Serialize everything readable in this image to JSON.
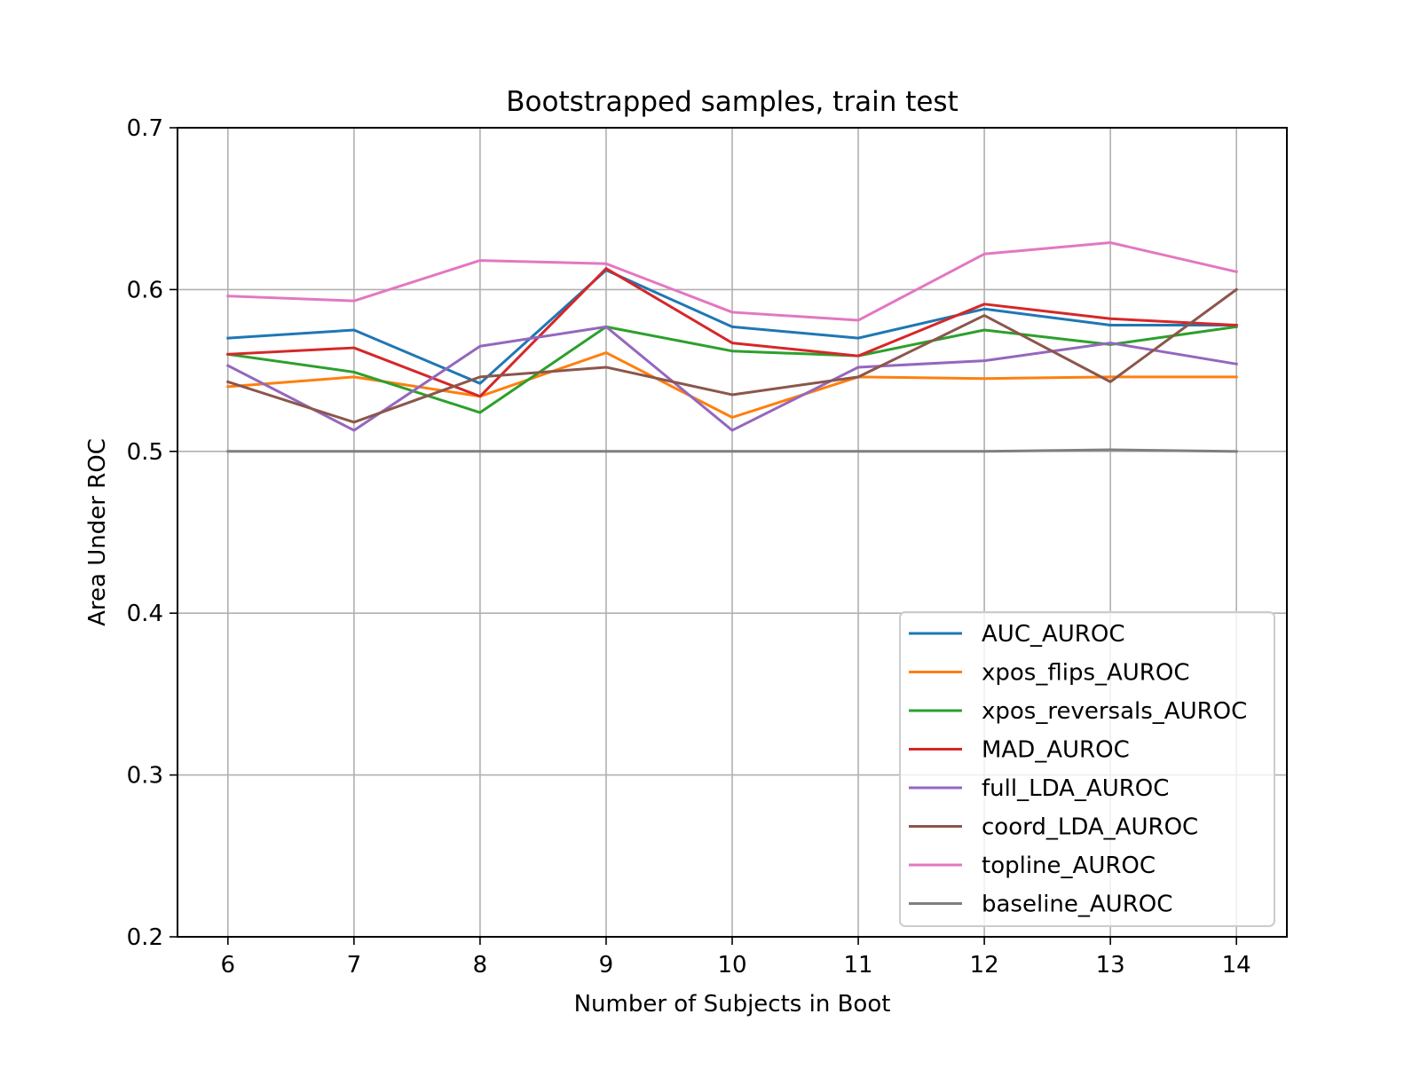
{
  "chart_data": {
    "type": "line",
    "title": "Bootstrapped samples, train test",
    "xlabel": "Number of Subjects in Boot",
    "ylabel": "Area Under ROC",
    "x": [
      6,
      7,
      8,
      9,
      10,
      11,
      12,
      13,
      14
    ],
    "xticks": [
      "6",
      "7",
      "8",
      "9",
      "10",
      "11",
      "12",
      "13",
      "14"
    ],
    "xlim": [
      5.6,
      14.4
    ],
    "yticks": [
      "0.2",
      "0.3",
      "0.4",
      "0.5",
      "0.6",
      "0.7"
    ],
    "ylim": [
      0.2,
      0.7
    ],
    "grid": true,
    "legend_position": "lower-right",
    "series": [
      {
        "name": "AUC_AUROC",
        "color": "#1f77b4",
        "values": [
          0.57,
          0.575,
          0.542,
          0.612,
          0.577,
          0.57,
          0.588,
          0.578,
          0.578
        ]
      },
      {
        "name": "xpos_flips_AUROC",
        "color": "#ff7f0e",
        "values": [
          0.54,
          0.546,
          0.534,
          0.561,
          0.521,
          0.546,
          0.545,
          0.546,
          0.546
        ]
      },
      {
        "name": "xpos_reversals_AUROC",
        "color": "#2ca02c",
        "values": [
          0.56,
          0.549,
          0.524,
          0.577,
          0.562,
          0.559,
          0.575,
          0.566,
          0.577
        ]
      },
      {
        "name": "MAD_AUROC",
        "color": "#d62728",
        "values": [
          0.56,
          0.564,
          0.534,
          0.613,
          0.567,
          0.559,
          0.591,
          0.582,
          0.578
        ]
      },
      {
        "name": "full_LDA_AUROC",
        "color": "#9467bd",
        "values": [
          0.553,
          0.513,
          0.565,
          0.577,
          0.513,
          0.552,
          0.556,
          0.567,
          0.554
        ]
      },
      {
        "name": "coord_LDA_AUROC",
        "color": "#8c564b",
        "values": [
          0.543,
          0.518,
          0.546,
          0.552,
          0.535,
          0.546,
          0.584,
          0.543,
          0.6
        ]
      },
      {
        "name": "topline_AUROC",
        "color": "#e377c2",
        "values": [
          0.596,
          0.593,
          0.618,
          0.616,
          0.586,
          0.581,
          0.622,
          0.629,
          0.611
        ]
      },
      {
        "name": "baseline_AUROC",
        "color": "#7f7f7f",
        "values": [
          0.5,
          0.5,
          0.5,
          0.5,
          0.5,
          0.5,
          0.5,
          0.501,
          0.5
        ]
      }
    ]
  }
}
